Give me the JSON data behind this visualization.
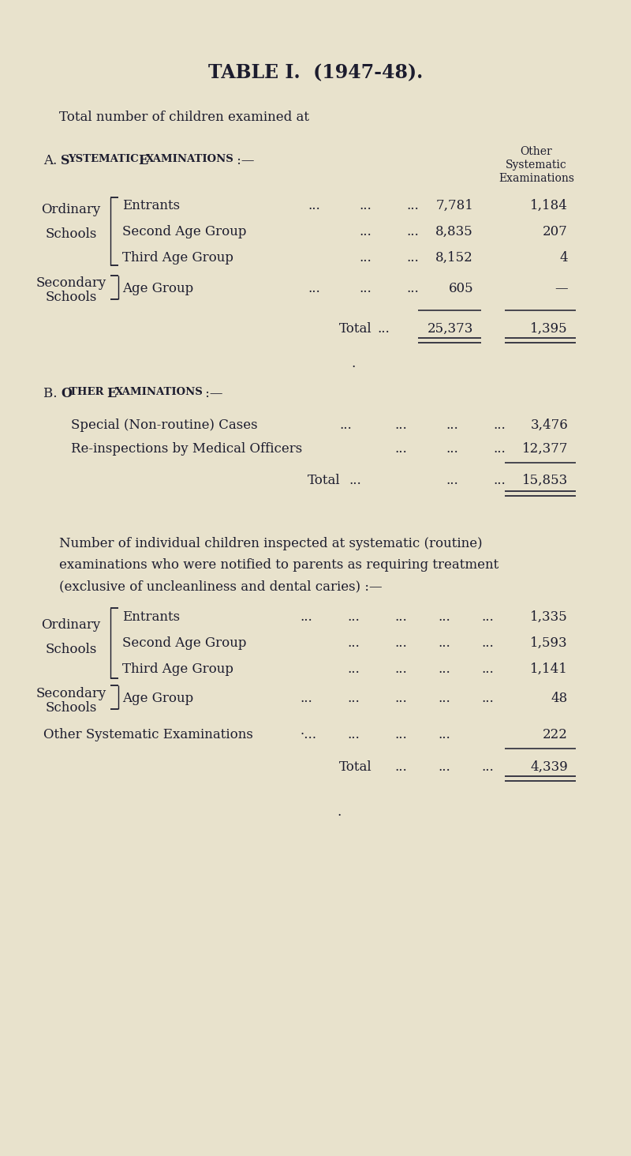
{
  "title": "TABLE I.  (1947-48).",
  "subtitle": "Total number of children examined at",
  "bg_color": "#e8e2cc",
  "text_color": "#1c1c2e",
  "section_a_header": "A.  Systematic Examinations :—",
  "col_header": [
    "Other",
    "Systematic",
    "Examinations"
  ],
  "sec_a_rows": [
    {
      "label": "Entrants",
      "val1": "7,781",
      "val2": "1,184"
    },
    {
      "label": "Second Age Group",
      "val1": "8,835",
      "val2": "207"
    },
    {
      "label": "Third Age Group",
      "val1": "8,152",
      "val2": "4"
    }
  ],
  "sec_a_secondary_row": {
    "label": "Age Group",
    "val1": "605",
    "val2": "—"
  },
  "sec_a_total_row": {
    "label": "Total",
    "val1": "25,373",
    "val2": "1,395"
  },
  "section_b_header": "B.  Other Examinations :—",
  "sec_b_rows": [
    {
      "label": "Special (Non-routine) Cases",
      "val": "3,476"
    },
    {
      "label": "Re-inspections by Medical Officers",
      "val": "12,377"
    }
  ],
  "sec_b_total_row": {
    "label": "Total",
    "val": "15,853"
  },
  "paragraph_lines": [
    "Number of individual children inspected at systematic (routine)",
    "examinations who were notified to parents as requiring treatment",
    "(exclusive of uncleanliness and dental caries) :—"
  ],
  "sec_c_rows": [
    {
      "label": "Entrants",
      "val": "1,335"
    },
    {
      "label": "Second Age Group",
      "val": "1,593"
    },
    {
      "label": "Third Age Group",
      "val": "1,141"
    }
  ],
  "sec_c_secondary_row": {
    "label": "Age Group",
    "val": "48"
  },
  "sec_c_other_row": {
    "label": "Other Systematic Examinations",
    "val": "222"
  },
  "sec_c_total_row": {
    "label": "Total",
    "val": "4,339"
  }
}
